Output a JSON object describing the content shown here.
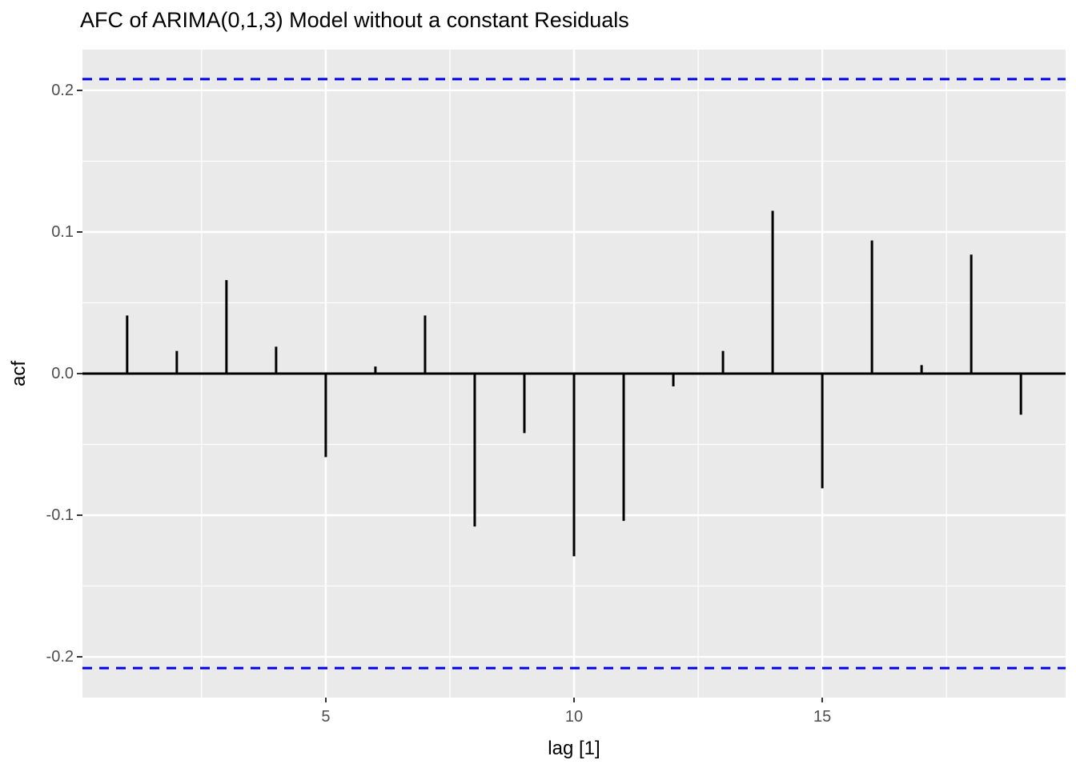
{
  "title": "AFC of ARIMA(0,1,3) Model without a constant Residuals",
  "chart_data": {
    "type": "bar",
    "subtype": "acf-stick-plot",
    "title": "AFC of ARIMA(0,1,3) Model without a constant Residuals",
    "xlabel": "lag [1]",
    "ylabel": "acf",
    "x": [
      1,
      2,
      3,
      4,
      5,
      6,
      7,
      8,
      9,
      10,
      11,
      12,
      13,
      14,
      15,
      16,
      17,
      18,
      19
    ],
    "values": [
      0.041,
      0.016,
      0.066,
      0.019,
      -0.059,
      0.005,
      0.041,
      -0.108,
      -0.042,
      -0.129,
      -0.104,
      -0.009,
      0.016,
      0.115,
      -0.081,
      0.094,
      0.006,
      0.084,
      -0.029
    ],
    "confidence_bounds": {
      "upper": 0.208,
      "lower": -0.208,
      "line_style": "dashed"
    },
    "xlim": [
      0.1,
      19.9
    ],
    "ylim": [
      -0.2288,
      0.2288
    ],
    "xticks": [
      5,
      10,
      15
    ],
    "xtick_labels": [
      "5",
      "10",
      "15"
    ],
    "yticks": [
      0.2,
      0.1,
      0.0,
      -0.1,
      -0.2
    ],
    "ytick_labels": [
      "0.2",
      "0.1",
      "0.0",
      "-0.1",
      "-0.2"
    ],
    "minor_xticks": [
      2.5,
      7.5,
      12.5,
      17.5
    ],
    "minor_yticks": [
      0.15,
      0.05,
      -0.05,
      -0.15
    ],
    "grid": true,
    "legend": false,
    "colors": {
      "bar": "#000000",
      "zero_line": "#000000",
      "confidence": "#0000EE",
      "panel_background": "#EAEAEA",
      "gridline": "#FFFFFF",
      "tick_label": "#4D4D4D",
      "tick_mark": "#333333",
      "title_text": "#000000"
    }
  }
}
